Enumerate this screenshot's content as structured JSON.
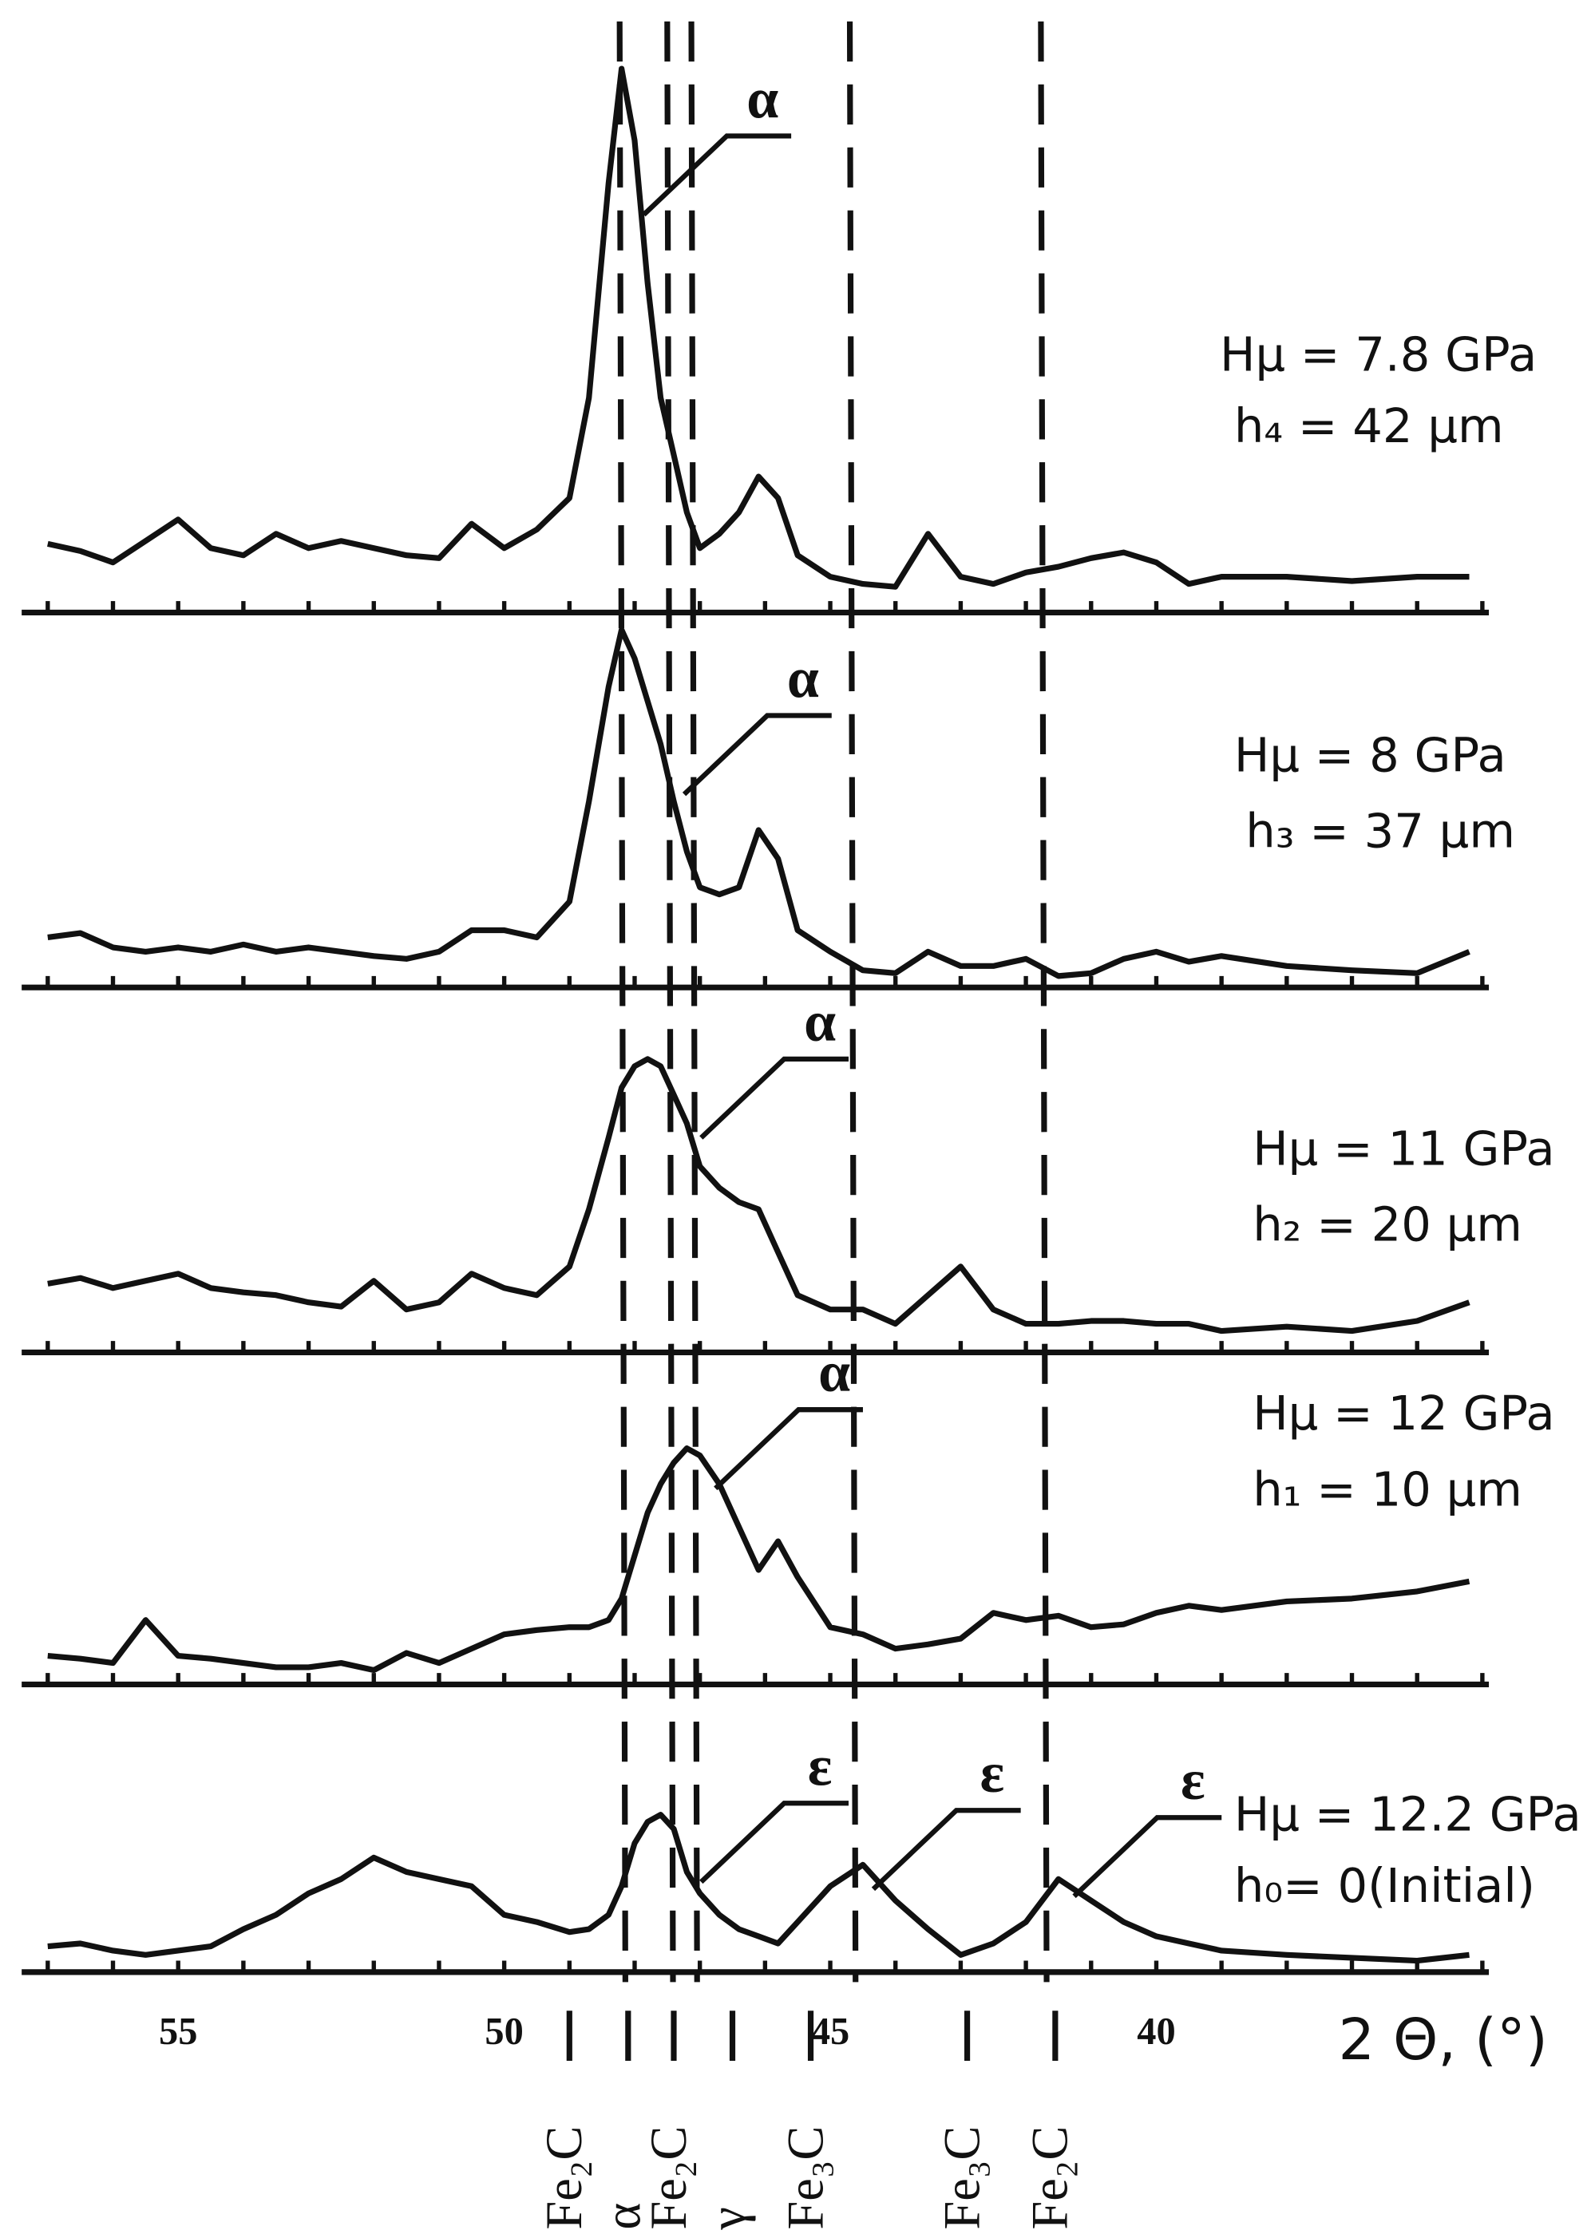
{
  "chart_data": {
    "type": "line",
    "xlabel": "2 Θ, (°)",
    "xlim": [
      57.4,
      34.9
    ],
    "xticks": [
      55,
      50,
      45,
      40
    ],
    "minor_xticks": [
      57,
      56,
      55,
      54,
      53,
      52,
      51,
      50,
      49,
      48,
      47,
      46,
      45,
      44,
      43,
      42,
      41,
      40,
      39,
      38,
      37,
      36,
      35
    ],
    "ylim": [
      0,
      400
    ],
    "reference_lines": [
      48.23,
      47.5,
      47.13,
      44.7,
      41.77
    ],
    "phase_labels": [
      {
        "label": "Fe₂C",
        "x": 49.0
      },
      {
        "label": "α",
        "x": 48.1
      },
      {
        "label": "Fe₂C",
        "x": 47.4
      },
      {
        "label": "γ",
        "x": 46.5
      },
      {
        "label": "Fe₃C",
        "x": 45.3
      },
      {
        "label": "Fe₃C",
        "x": 42.9
      },
      {
        "label": "Fe₂C",
        "x": 41.55
      }
    ],
    "x": [
      57,
      56.5,
      56,
      55.5,
      55,
      54.5,
      54,
      53.5,
      53,
      52.5,
      52,
      51.5,
      51,
      50.5,
      50,
      49.5,
      49,
      48.7,
      48.4,
      48.2,
      48,
      47.8,
      47.6,
      47.4,
      47.2,
      47,
      46.7,
      46.4,
      46.1,
      45.8,
      45.5,
      45,
      44.5,
      44,
      43.5,
      43,
      42.5,
      42,
      41.5,
      41,
      40.5,
      40,
      39.5,
      39,
      38,
      37,
      36,
      35.2
    ],
    "series": [
      {
        "name": "Hμ = 7.8 GPa",
        "detail": "h₄ = 42 μm",
        "color": "#111111",
        "values": [
          48,
          43,
          35,
          50,
          65,
          45,
          40,
          55,
          45,
          50,
          45,
          40,
          38,
          62,
          45,
          58,
          80,
          150,
          300,
          380,
          330,
          230,
          150,
          110,
          70,
          45,
          55,
          70,
          95,
          80,
          40,
          25,
          20,
          18,
          55,
          25,
          20,
          28,
          32,
          38,
          42,
          35,
          20,
          25,
          25,
          22,
          25,
          25
        ],
        "annotations": [
          {
            "text": "α",
            "x": 47.86,
            "y": 278
          }
        ]
      },
      {
        "name": "Hμ = 8 GPa",
        "detail": "h₃ = 37 μm",
        "color": "#111111",
        "values": [
          35,
          38,
          28,
          25,
          28,
          25,
          30,
          25,
          28,
          25,
          22,
          20,
          25,
          40,
          40,
          35,
          60,
          130,
          210,
          250,
          230,
          200,
          170,
          130,
          95,
          70,
          65,
          70,
          110,
          90,
          40,
          25,
          12,
          10,
          25,
          15,
          15,
          20,
          8,
          10,
          20,
          25,
          18,
          22,
          15,
          12,
          10,
          25
        ],
        "annotations": [
          {
            "text": "α",
            "x": 47.24,
            "y": 135
          }
        ]
      },
      {
        "name": "Hμ = 11 GPa",
        "detail": "h₂ = 20 μm",
        "color": "#111111",
        "values": [
          48,
          52,
          45,
          50,
          55,
          45,
          42,
          40,
          35,
          32,
          50,
          30,
          35,
          55,
          45,
          40,
          60,
          100,
          150,
          185,
          200,
          205,
          200,
          180,
          160,
          130,
          115,
          105,
          100,
          70,
          40,
          30,
          30,
          20,
          40,
          60,
          30,
          20,
          20,
          22,
          22,
          20,
          20,
          15,
          18,
          15,
          22,
          35
        ],
        "annotations": [
          {
            "text": "α",
            "x": 46.98,
            "y": 150
          }
        ]
      },
      {
        "name": "Hμ = 12 GPa",
        "detail": "h₁ = 10 μm",
        "color": "#111111",
        "values": [
          20,
          18,
          15,
          45,
          20,
          18,
          15,
          12,
          12,
          15,
          10,
          22,
          15,
          25,
          35,
          38,
          40,
          40,
          45,
          60,
          90,
          120,
          140,
          155,
          165,
          160,
          140,
          110,
          80,
          100,
          75,
          40,
          35,
          25,
          28,
          32,
          50,
          45,
          48,
          40,
          42,
          50,
          55,
          52,
          58,
          60,
          65,
          72
        ],
        "annotations": [
          {
            "text": "α",
            "x": 46.76,
            "y": 137
          }
        ]
      },
      {
        "name": "Hμ = 12.2 GPa",
        "detail": "h₀= 0(Initial)",
        "color": "#111111",
        "values": [
          18,
          20,
          15,
          12,
          15,
          18,
          30,
          40,
          55,
          65,
          80,
          70,
          65,
          60,
          40,
          35,
          28,
          30,
          40,
          60,
          90,
          105,
          110,
          100,
          70,
          55,
          40,
          30,
          25,
          20,
          35,
          60,
          75,
          50,
          30,
          12,
          20,
          35,
          65,
          50,
          35,
          25,
          20,
          15,
          12,
          10,
          8,
          12
        ],
        "annotations": [
          {
            "text": "ε",
            "x": 46.98,
            "y": 63
          },
          {
            "text": "ε",
            "x": 44.34,
            "y": 58
          },
          {
            "text": "ε",
            "x": 41.26,
            "y": 53
          }
        ]
      }
    ]
  }
}
